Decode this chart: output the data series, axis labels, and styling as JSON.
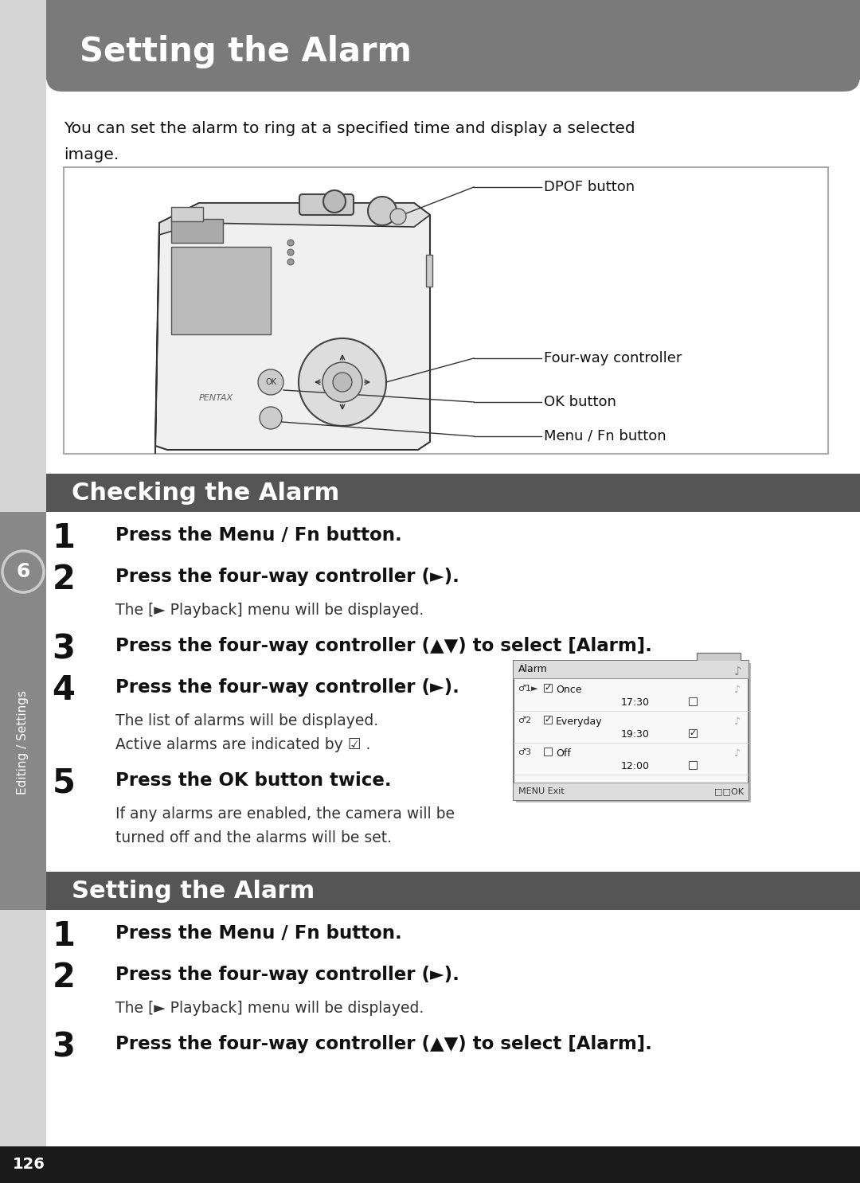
{
  "page_bg": "#e8e8e8",
  "content_bg": "#ffffff",
  "header_bg": "#7a7a7a",
  "section_bg": "#555555",
  "footer_bg": "#1a1a1a",
  "header_text": "Setting the Alarm",
  "header_text_color": "#ffffff",
  "intro_line1": "You can set the alarm to ring at a specified time and display a selected",
  "intro_line2": "image.",
  "section1_title": "Checking the Alarm",
  "section2_title": "Setting the Alarm",
  "steps_checking": [
    {
      "num": "1",
      "bold": "Press the Menu / Fn button.",
      "normal": ""
    },
    {
      "num": "2",
      "bold": "Press the four-way controller (►).",
      "normal": "The [► Playback] menu will be displayed."
    },
    {
      "num": "3",
      "bold": "Press the four-way controller (▲▼) to select [Alarm].",
      "normal": ""
    },
    {
      "num": "4",
      "bold": "Press the four-way controller (►).",
      "normal": "The list of alarms will be displayed.\nActive alarms are indicated by ☑ ."
    },
    {
      "num": "5",
      "bold": "Press the OK button twice.",
      "normal": "If any alarms are enabled, the camera will be\nturned off and the alarms will be set."
    }
  ],
  "steps_setting": [
    {
      "num": "1",
      "bold": "Press the Menu / Fn button.",
      "normal": ""
    },
    {
      "num": "2",
      "bold": "Press the four-way controller (►).",
      "normal": "The [► Playback] menu will be displayed."
    },
    {
      "num": "3",
      "bold": "Press the four-way controller (▲▼) to select [Alarm].",
      "normal": ""
    }
  ],
  "page_number": "126",
  "sidebar_text": "Editing / Settings",
  "sidebar_number": "6"
}
